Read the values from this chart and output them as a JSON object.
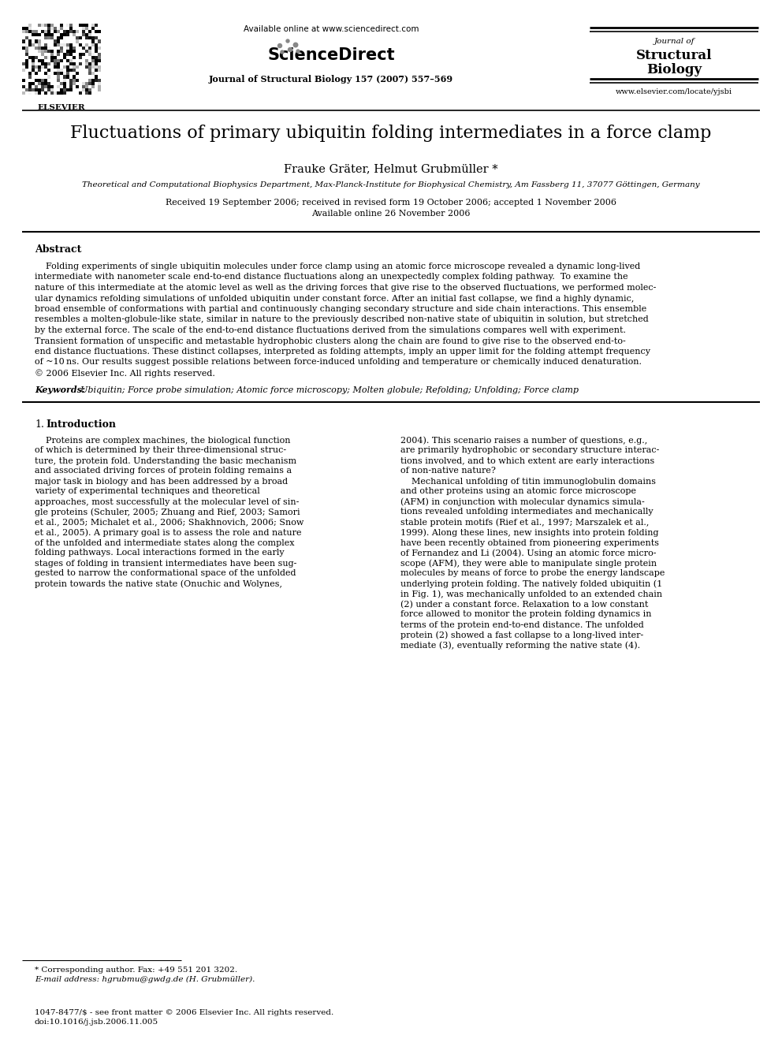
{
  "title": "Fluctuations of primary ubiquitin folding intermediates in a force clamp",
  "authors": "Frauke Gräter, Helmut Grubmüller *",
  "affiliation": "Theoretical and Computational Biophysics Department, Max-Planck-Institute for Biophysical Chemistry, Am Fassberg 11, 37077 Göttingen, Germany",
  "received": "Received 19 September 2006; received in revised form 19 October 2006; accepted 1 November 2006",
  "available": "Available online 26 November 2006",
  "journal_header": "Journal of Structural Biology 157 (2007) 557–569",
  "available_online": "Available online at www.sciencedirect.com",
  "journal_name_line1": "Journal of",
  "journal_name_line2": "Structural",
  "journal_name_line3": "Biology",
  "elsevier_text": "ELSEVIER",
  "url": "www.elsevier.com/locate/yjsbi",
  "abstract_title": "Abstract",
  "keywords_label": "Keywords:",
  "keywords_body": "  Ubiquitin; Force probe simulation; Atomic force microscopy; Molten globule; Refolding; Unfolding; Force clamp",
  "section1_num": "1.",
  "section1_name": "Introduction",
  "footnote_star": "* Corresponding author. Fax: +49 551 201 3202.",
  "footnote_email": "E-mail address: hgrubmu@gwdg.de (H. Grubmüller).",
  "bottom_text1": "1047-8477/$ - see front matter © 2006 Elsevier Inc. All rights reserved.",
  "bottom_text2": "doi:10.1016/j.jsb.2006.11.005",
  "abstract_lines": [
    "    Folding experiments of single ubiquitin molecules under force clamp using an atomic force microscope revealed a dynamic long-lived",
    "intermediate with nanometer scale end-to-end distance fluctuations along an unexpectedly complex folding pathway.  To examine the",
    "nature of this intermediate at the atomic level as well as the driving forces that give rise to the observed fluctuations, we performed molec-",
    "ular dynamics refolding simulations of unfolded ubiquitin under constant force. After an initial fast collapse, we find a highly dynamic,",
    "broad ensemble of conformations with partial and continuously changing secondary structure and side chain interactions. This ensemble",
    "resembles a molten-globule-like state, similar in nature to the previously described non-native state of ubiquitin in solution, but stretched",
    "by the external force. The scale of the end-to-end distance fluctuations derived from the simulations compares well with experiment.",
    "Transient formation of unspecific and metastable hydrophobic clusters along the chain are found to give rise to the observed end-to-",
    "end distance fluctuations. These distinct collapses, interpreted as folding attempts, imply an upper limit for the folding attempt frequency",
    "of ~10 ns. Our results suggest possible relations between force-induced unfolding and temperature or chemically induced denaturation.",
    "© 2006 Elsevier Inc. All rights reserved."
  ],
  "left_col_lines": [
    "    Proteins are complex machines, the biological function",
    "of which is determined by their three-dimensional struc-",
    "ture, the protein fold. Understanding the basic mechanism",
    "and associated driving forces of protein folding remains a",
    "major task in biology and has been addressed by a broad",
    "variety of experimental techniques and theoretical",
    "approaches, most successfully at the molecular level of sin-",
    "gle proteins (Schuler, 2005; Zhuang and Rief, 2003; Samori",
    "et al., 2005; Michalet et al., 2006; Shakhnovich, 2006; Snow",
    "et al., 2005). A primary goal is to assess the role and nature",
    "of the unfolded and intermediate states along the complex",
    "folding pathways. Local interactions formed in the early",
    "stages of folding in transient intermediates have been sug-",
    "gested to narrow the conformational space of the unfolded",
    "protein towards the native state (Onuchic and Wolynes,"
  ],
  "right_col_lines": [
    "2004). This scenario raises a number of questions, e.g.,",
    "are primarily hydrophobic or secondary structure interac-",
    "tions involved, and to which extent are early interactions",
    "of non-native nature?",
    "    Mechanical unfolding of titin immunoglobulin domains",
    "and other proteins using an atomic force microscope",
    "(AFM) in conjunction with molecular dynamics simula-",
    "tions revealed unfolding intermediates and mechanically",
    "stable protein motifs (Rief et al., 1997; Marszalek et al.,",
    "1999). Along these lines, new insights into protein folding",
    "have been recently obtained from pioneering experiments",
    "of Fernandez and Li (2004). Using an atomic force micro-",
    "scope (AFM), they were able to manipulate single protein",
    "molecules by means of force to probe the energy landscape",
    "underlying protein folding. The natively folded ubiquitin (1",
    "in Fig. 1), was mechanically unfolded to an extended chain",
    "(2) under a constant force. Relaxation to a low constant",
    "force allowed to monitor the protein folding dynamics in",
    "terms of the protein end-to-end distance. The unfolded",
    "protein (2) showed a fast collapse to a long-lived inter-",
    "mediate (3), eventually reforming the native state (4)."
  ],
  "bg_color": "#ffffff"
}
